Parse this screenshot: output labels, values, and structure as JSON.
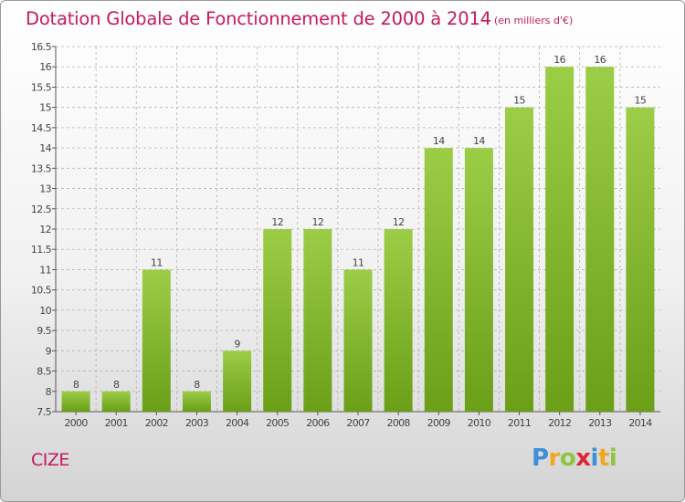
{
  "chart_data": {
    "type": "bar",
    "title": "Dotation Globale de Fonctionnement de 2000 à 2014",
    "subtitle": "(en milliers d'€)",
    "categories": [
      "2000",
      "2001",
      "2002",
      "2003",
      "2004",
      "2005",
      "2006",
      "2007",
      "2008",
      "2009",
      "2010",
      "2011",
      "2012",
      "2013",
      "2014"
    ],
    "values": [
      8,
      8,
      11,
      8,
      9,
      12,
      12,
      11,
      12,
      14,
      14,
      15,
      16,
      16,
      15
    ],
    "data_labels": [
      "8",
      "8",
      "11",
      "8",
      "9",
      "12",
      "12",
      "11",
      "12",
      "14",
      "14",
      "15",
      "16",
      "16",
      "15"
    ],
    "ylim": [
      7.5,
      16.5
    ],
    "yticks": [
      7.5,
      8,
      8.5,
      9,
      9.5,
      10,
      10.5,
      11,
      11.5,
      12,
      12.5,
      13,
      13.5,
      14,
      14.5,
      15,
      15.5,
      16,
      16.5
    ],
    "ytick_labels": [
      "7.5",
      "8",
      "8.5",
      "9",
      "9.5",
      "10",
      "10.5",
      "11",
      "11.5",
      "12",
      "12.5",
      "13",
      "13.5",
      "14",
      "14.5",
      "15",
      "15.5",
      "16",
      "16.5"
    ],
    "xlabel": "",
    "ylabel": "",
    "grid": true,
    "colors": {
      "bar_light": "#9ccd46",
      "bar_dark": "#6a9f17",
      "grid": "#b4b4b4",
      "text": "#444444",
      "accent": "#c5195d"
    }
  },
  "footer": {
    "commune": "CIZE",
    "brand_letters": [
      {
        "ch": "P",
        "color": "#3f8fd6"
      },
      {
        "ch": "r",
        "color": "#f0a81e"
      },
      {
        "ch": "o",
        "color": "#8dc63f"
      },
      {
        "ch": "x",
        "color": "#e2233a"
      },
      {
        "ch": "i",
        "color": "#3f8fd6"
      },
      {
        "ch": "t",
        "color": "#f0a81e"
      },
      {
        "ch": "i",
        "color": "#8dc63f"
      }
    ]
  }
}
